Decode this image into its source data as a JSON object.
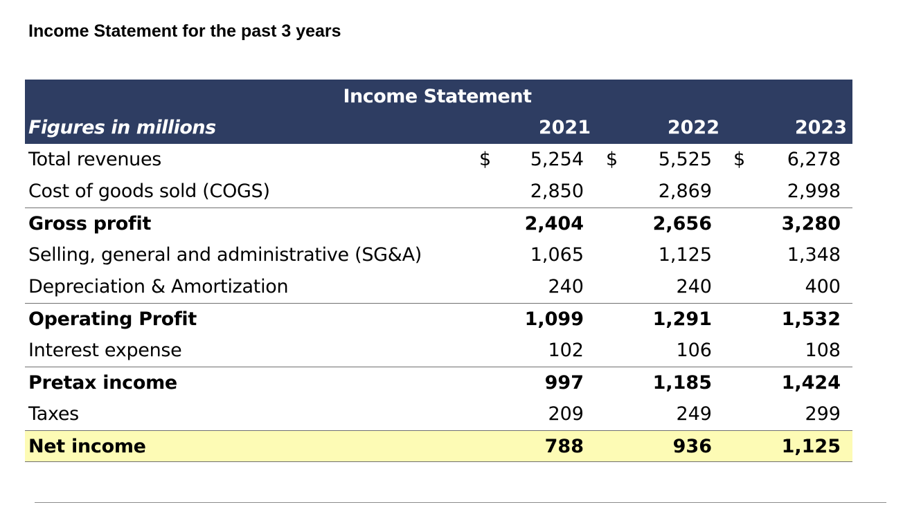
{
  "page": {
    "title": "Income Statement for the past 3 years"
  },
  "table": {
    "title": "Income Statement",
    "units_label": "Figures in millions",
    "currency_symbol": "$",
    "years": [
      "2021",
      "2022",
      "2023"
    ],
    "rows": [
      {
        "label": "Total revenues",
        "values": [
          "5,254",
          "5,525",
          "6,278"
        ],
        "bold": false,
        "currency": true
      },
      {
        "label": "Cost of goods sold (COGS)",
        "values": [
          "2,850",
          "2,869",
          "2,998"
        ],
        "bold": false
      },
      {
        "label": "Gross profit",
        "values": [
          "2,404",
          "2,656",
          "3,280"
        ],
        "bold": true
      },
      {
        "label": "Selling, general and administrative (SG&A)",
        "values": [
          "1,065",
          "1,125",
          "1,348"
        ],
        "bold": false
      },
      {
        "label": "Depreciation & Amortization",
        "values": [
          "240",
          "240",
          "400"
        ],
        "bold": false
      },
      {
        "label": "Operating Profit",
        "values": [
          "1,099",
          "1,291",
          "1,532"
        ],
        "bold": true
      },
      {
        "label": "Interest expense",
        "values": [
          "102",
          "106",
          "108"
        ],
        "bold": false
      },
      {
        "label": "Pretax income",
        "values": [
          "997",
          "1,185",
          "1,424"
        ],
        "bold": true
      },
      {
        "label": "Taxes",
        "values": [
          "209",
          "249",
          "299"
        ],
        "bold": false
      },
      {
        "label": "Net income",
        "values": [
          "788",
          "936",
          "1,125"
        ],
        "bold": true,
        "highlight": true
      }
    ]
  },
  "colors": {
    "header_background": "#2e3d62",
    "header_text": "#ffffff",
    "net_income_highlight": "#fdfbb5",
    "rule": "#6f6f6f"
  }
}
